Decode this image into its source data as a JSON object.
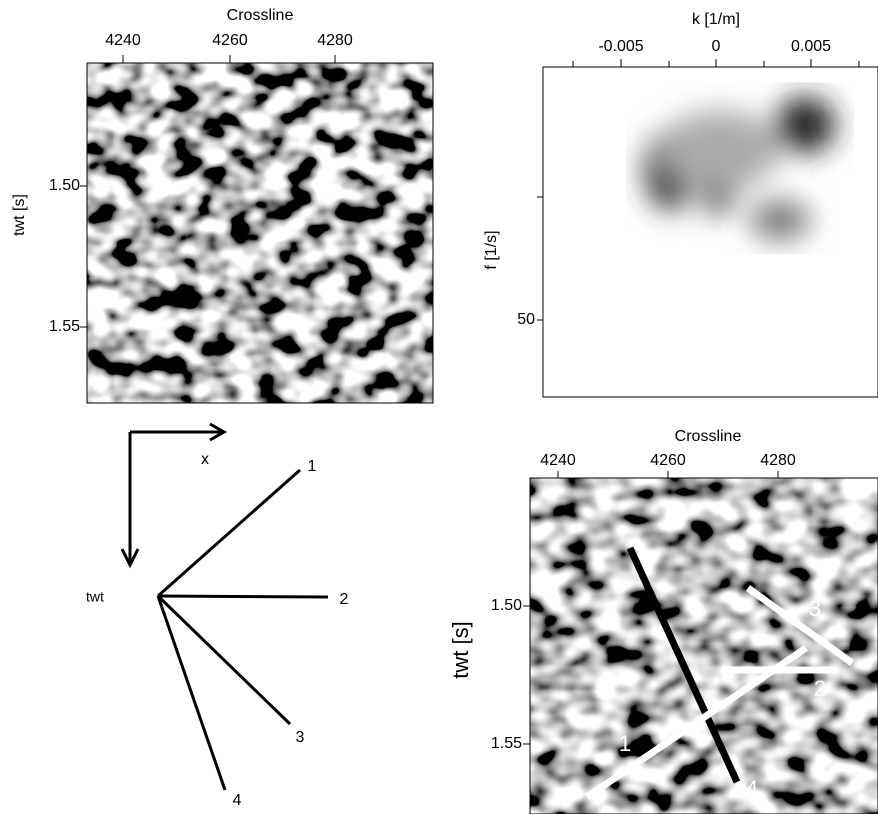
{
  "panels": [
    {
      "x_label": "Crossline",
      "y_label": "twt [s]",
      "x_ticks": [
        4240,
        4260,
        4280
      ],
      "y_ticks": [
        {
          "value": 1.5,
          "label": "1.50"
        },
        {
          "value": 1.55,
          "label": "1.55"
        }
      ]
    },
    {
      "x_label": "k [1/m]",
      "y_label": "f [1/s]",
      "x_ticks": [
        -0.005,
        0,
        0.005
      ],
      "y_ticks": [
        50
      ]
    },
    {
      "axis_x": "x",
      "axis_y": "twt",
      "line_labels": [
        "1",
        "2",
        "3",
        "4"
      ]
    },
    {
      "x_label": "Crossline",
      "y_label": "twt [s]",
      "x_ticks": [
        4240,
        4260,
        4280
      ],
      "y_ticks": [
        {
          "value": 1.5,
          "label": "1.50"
        },
        {
          "value": 1.55,
          "label": "1.55"
        }
      ],
      "line_labels": [
        "1",
        "2",
        "3",
        "4"
      ]
    }
  ]
}
